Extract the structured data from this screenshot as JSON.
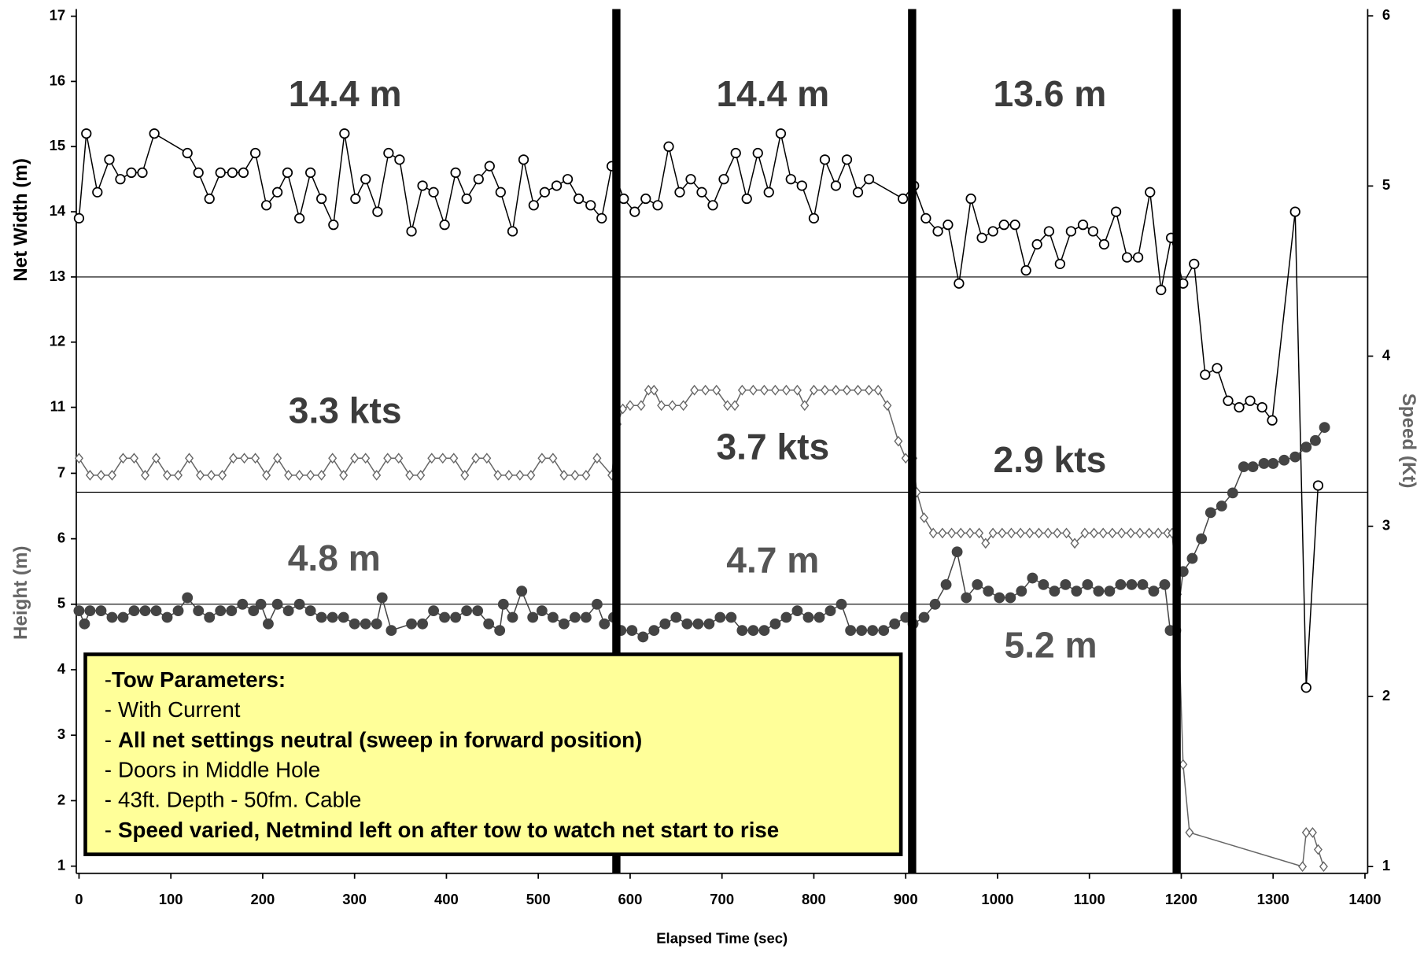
{
  "chart_data": {
    "type": "line",
    "x_label": "Elapsed Time (sec)",
    "xlim": [
      0,
      1400
    ],
    "xticks": [
      0,
      100,
      200,
      300,
      400,
      500,
      600,
      700,
      800,
      900,
      1000,
      1100,
      1200,
      1300,
      1400
    ],
    "y_axes": [
      {
        "label": "Net Width (m)",
        "side": "left",
        "color": "#000000",
        "ylim": [
          3.85,
          17.11
        ],
        "yticks": [
          11,
          12,
          13,
          14,
          15,
          16,
          17
        ]
      },
      {
        "label": "Height (m)",
        "side": "left",
        "color": "#666666",
        "ylim": [
          0.89,
          14.09
        ],
        "yticks": [
          1,
          2,
          3,
          4,
          5,
          6,
          7
        ]
      },
      {
        "label": "Speed (Kt)",
        "side": "right",
        "color": "#666666",
        "ylim": [
          0.96,
          6.04
        ],
        "yticks": [
          1,
          2,
          3,
          4,
          5,
          6
        ]
      }
    ],
    "hlines": [
      {
        "axis": 0,
        "value": 13
      },
      {
        "axis": 2,
        "value": 3.2
      },
      {
        "axis": 1,
        "value": 5
      }
    ],
    "vlines": [
      585,
      907,
      1195
    ],
    "series": [
      {
        "axis": 0,
        "marker": "circle",
        "color": "#000000",
        "x": [
          0,
          8,
          20,
          33,
          45,
          57,
          69,
          82,
          118,
          130,
          142,
          154,
          167,
          179,
          192,
          204,
          216,
          227,
          240,
          252,
          264,
          277,
          289,
          301,
          312,
          325,
          337,
          349,
          362,
          374,
          386,
          398,
          410,
          422,
          435,
          447,
          459,
          472,
          484,
          495,
          507,
          520,
          532,
          544,
          557,
          569,
          580,
          593,
          605,
          617,
          630,
          642,
          654,
          666,
          678,
          690,
          702,
          715,
          727,
          739,
          751,
          764,
          775,
          787,
          800,
          812,
          824,
          836,
          848,
          860,
          897,
          909,
          922,
          935,
          946,
          958,
          971,
          983,
          995,
          1007,
          1019,
          1031,
          1043,
          1056,
          1068,
          1080,
          1093,
          1104,
          1116,
          1129,
          1141,
          1153,
          1166,
          1178,
          1189,
          1202,
          1214,
          1226,
          1239,
          1251,
          1263,
          1275,
          1288,
          1299,
          1324,
          1336,
          1349
        ],
        "values": [
          13.9,
          15.2,
          14.3,
          14.8,
          14.5,
          14.6,
          14.6,
          15.2,
          14.9,
          14.6,
          14.2,
          14.6,
          14.6,
          14.6,
          14.9,
          14.1,
          14.3,
          14.6,
          13.9,
          14.6,
          14.2,
          13.8,
          15.2,
          14.2,
          14.5,
          14.0,
          14.9,
          14.8,
          13.7,
          14.4,
          14.3,
          13.8,
          14.6,
          14.2,
          14.5,
          14.7,
          14.3,
          13.7,
          14.8,
          14.1,
          14.3,
          14.4,
          14.5,
          14.2,
          14.1,
          13.9,
          14.7,
          14.2,
          14.0,
          14.2,
          14.1,
          15.0,
          14.3,
          14.5,
          14.3,
          14.1,
          14.5,
          14.9,
          14.2,
          14.9,
          14.3,
          15.2,
          14.5,
          14.4,
          13.9,
          14.8,
          14.4,
          14.8,
          14.3,
          14.5,
          14.2,
          14.4,
          13.9,
          13.7,
          13.8,
          12.9,
          14.2,
          13.6,
          13.7,
          13.8,
          13.8,
          13.1,
          13.5,
          13.7,
          13.2,
          13.7,
          13.8,
          13.7,
          13.5,
          14.0,
          13.3,
          13.3,
          14.3,
          12.8,
          13.6,
          12.9,
          13.2,
          11.5,
          11.6,
          11.1,
          11.0,
          11.1,
          11.0,
          10.8,
          14.0,
          6.7,
          9.8
        ]
      },
      {
        "axis": 2,
        "marker": "diamond",
        "color": "#666666",
        "x": [
          0,
          12,
          24,
          36,
          48,
          60,
          72,
          84,
          96,
          108,
          120,
          132,
          144,
          156,
          168,
          180,
          192,
          204,
          216,
          228,
          240,
          252,
          264,
          276,
          288,
          300,
          312,
          324,
          336,
          348,
          360,
          372,
          384,
          396,
          408,
          420,
          432,
          444,
          456,
          468,
          480,
          492,
          504,
          516,
          528,
          540,
          552,
          564,
          580,
          586,
          592,
          600,
          612,
          620,
          626,
          634,
          646,
          658,
          670,
          682,
          694,
          706,
          714,
          722,
          734,
          746,
          758,
          770,
          782,
          790,
          800,
          812,
          824,
          836,
          848,
          860,
          870,
          880,
          892,
          900,
          908,
          912,
          920,
          930,
          940,
          950,
          960,
          970,
          980,
          987,
          995,
          1005,
          1015,
          1025,
          1035,
          1045,
          1055,
          1065,
          1075,
          1084,
          1095,
          1105,
          1115,
          1125,
          1135,
          1145,
          1155,
          1165,
          1175,
          1185,
          1190,
          1196,
          1202,
          1209,
          1332,
          1336,
          1343,
          1349,
          1355
        ],
        "values": [
          3.4,
          3.3,
          3.3,
          3.3,
          3.4,
          3.4,
          3.3,
          3.4,
          3.3,
          3.3,
          3.4,
          3.3,
          3.3,
          3.3,
          3.4,
          3.4,
          3.4,
          3.3,
          3.4,
          3.3,
          3.3,
          3.3,
          3.3,
          3.4,
          3.3,
          3.4,
          3.4,
          3.3,
          3.4,
          3.4,
          3.3,
          3.3,
          3.4,
          3.4,
          3.4,
          3.3,
          3.4,
          3.4,
          3.3,
          3.3,
          3.3,
          3.3,
          3.4,
          3.4,
          3.3,
          3.3,
          3.3,
          3.4,
          3.3,
          3.6,
          3.69,
          3.71,
          3.71,
          3.8,
          3.8,
          3.71,
          3.71,
          3.71,
          3.8,
          3.8,
          3.8,
          3.71,
          3.71,
          3.8,
          3.8,
          3.8,
          3.8,
          3.8,
          3.8,
          3.71,
          3.8,
          3.8,
          3.8,
          3.8,
          3.8,
          3.8,
          3.8,
          3.71,
          3.5,
          3.4,
          3.4,
          3.2,
          3.05,
          2.96,
          2.96,
          2.96,
          2.96,
          2.96,
          2.96,
          2.9,
          2.96,
          2.96,
          2.96,
          2.96,
          2.96,
          2.96,
          2.96,
          2.96,
          2.96,
          2.9,
          2.96,
          2.96,
          2.96,
          2.96,
          2.96,
          2.96,
          2.96,
          2.96,
          2.96,
          2.96,
          2.96,
          2.6,
          1.6,
          1.2,
          1.0,
          1.2,
          1.2,
          1.1,
          1.0
        ]
      },
      {
        "axis": 1,
        "marker": "filled",
        "color": "#444444",
        "x": [
          0,
          6,
          12,
          24,
          36,
          48,
          60,
          72,
          84,
          96,
          108,
          118,
          130,
          142,
          154,
          166,
          178,
          190,
          198,
          206,
          216,
          228,
          240,
          252,
          264,
          276,
          288,
          300,
          312,
          324,
          330,
          340,
          362,
          374,
          386,
          398,
          410,
          422,
          434,
          446,
          458,
          462,
          472,
          482,
          494,
          504,
          516,
          528,
          540,
          552,
          564,
          572,
          582,
          590,
          602,
          614,
          626,
          638,
          650,
          662,
          674,
          686,
          698,
          710,
          722,
          734,
          746,
          758,
          770,
          782,
          794,
          806,
          818,
          830,
          840,
          852,
          864,
          876,
          888,
          900,
          908,
          920,
          932,
          944,
          956,
          966,
          978,
          990,
          1002,
          1014,
          1026,
          1038,
          1050,
          1062,
          1074,
          1086,
          1098,
          1110,
          1122,
          1134,
          1146,
          1158,
          1170,
          1182,
          1188,
          1194,
          1202,
          1212,
          1222,
          1232,
          1244,
          1256,
          1268,
          1278,
          1290,
          1300,
          1312,
          1324,
          1336,
          1346,
          1356
        ],
        "values": [
          4.9,
          4.7,
          4.9,
          4.9,
          4.8,
          4.8,
          4.9,
          4.9,
          4.9,
          4.8,
          4.9,
          5.1,
          4.9,
          4.8,
          4.9,
          4.9,
          5.0,
          4.9,
          5.0,
          4.7,
          5.0,
          4.9,
          5.0,
          4.9,
          4.8,
          4.8,
          4.8,
          4.7,
          4.7,
          4.7,
          5.1,
          4.6,
          4.7,
          4.7,
          4.9,
          4.8,
          4.8,
          4.9,
          4.9,
          4.7,
          4.6,
          5.0,
          4.8,
          5.2,
          4.8,
          4.9,
          4.8,
          4.7,
          4.8,
          4.8,
          5.0,
          4.7,
          4.8,
          4.6,
          4.6,
          4.5,
          4.6,
          4.7,
          4.8,
          4.7,
          4.7,
          4.7,
          4.8,
          4.8,
          4.6,
          4.6,
          4.6,
          4.7,
          4.8,
          4.9,
          4.8,
          4.8,
          4.9,
          5.0,
          4.6,
          4.6,
          4.6,
          4.6,
          4.7,
          4.8,
          4.7,
          4.8,
          5.0,
          5.3,
          5.8,
          5.1,
          5.3,
          5.2,
          5.1,
          5.1,
          5.2,
          5.4,
          5.3,
          5.2,
          5.3,
          5.2,
          5.3,
          5.2,
          5.2,
          5.3,
          5.3,
          5.3,
          5.2,
          5.3,
          4.6,
          4.6,
          5.5,
          5.7,
          6.0,
          6.4,
          6.5,
          6.7,
          7.1,
          7.1,
          7.15,
          7.15,
          7.2,
          7.25,
          7.4,
          7.5,
          7.7
        ]
      }
    ],
    "annotations": [
      "14.4 m",
      "14.4 m",
      "13.6 m",
      "3.3 kts",
      "3.7 kts",
      "2.9 kts",
      "4.8 m",
      "4.7 m",
      "5.2 m"
    ],
    "text_box": {
      "lines": [
        {
          "bullet": "-",
          "text": "Tow Parameters:",
          "bold": true
        },
        {
          "bullet": "-",
          "text": "With Current",
          "bold": false
        },
        {
          "bullet": "-",
          "text": "All net settings neutral (sweep in forward position)",
          "bold": true
        },
        {
          "bullet": "-",
          "text": "Doors in Middle Hole",
          "bold": false
        },
        {
          "bullet": "-",
          "text": "43ft. Depth - 50fm. Cable",
          "bold": false
        },
        {
          "bullet": "-",
          "text": "Speed varied, Netmind left on after tow to watch net start to rise",
          "bold": true
        }
      ]
    }
  }
}
